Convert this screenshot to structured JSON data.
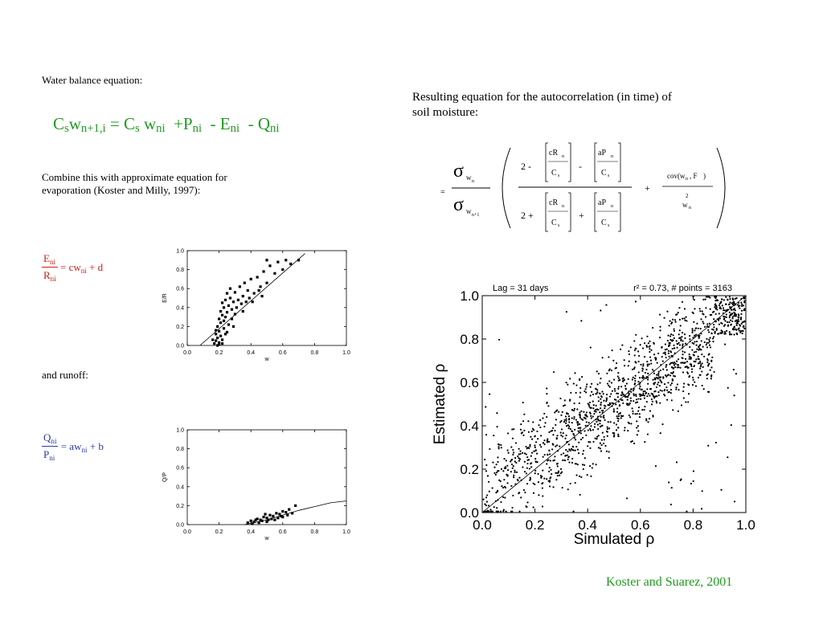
{
  "left": {
    "water_balance_label": "Water balance equation:",
    "wb_eq": {
      "c1": "C",
      "s1": "s",
      "w1": "w",
      "sub1": "n+1,i",
      "eq": "=",
      "c2": "C",
      "s2": "s",
      "w2": "w",
      "sub2": "ni",
      "plus": "+",
      "p": "P",
      "psub": "ni",
      "minus1": "-",
      "e": "E",
      "esub": "ni",
      "minus2": "-",
      "q": "Q",
      "qsub": "ni"
    },
    "combine_text_line1": "Combine this with approximate equation for",
    "combine_text_line2": "evaporation (Koster and Milly, 1997):",
    "evap_eq": {
      "num": "E",
      "num_sub": "ni",
      "den": "R",
      "den_sub": "ni",
      "rhs": "= cw",
      "rhs_sub": "ni",
      "rhs_tail": "+ d"
    },
    "runoff_label": "and runoff:",
    "runoff_eq": {
      "num": "Q",
      "num_sub": "ni",
      "den": "P",
      "den_sub": "ni",
      "rhs": "= aw",
      "rhs_sub": "ni",
      "rhs_tail": "+ b"
    }
  },
  "right": {
    "result_line1": "Resulting equation for the autocorrelation (in time) of",
    "result_line2": "soil moisture:",
    "autocorr_eq": {
      "sigma": "σ",
      "sub_top": "w",
      "sub_top_n": "n",
      "sub_bot": "w",
      "sub_bot_n": "n+1",
      "equals": "=",
      "two_minus": "2 -",
      "two_plus": "2 +",
      "cR": "cR",
      "n": "n",
      "Cs": "C",
      "s": "s",
      "aP": "aP",
      "minus": "-",
      "plus": "+",
      "cov": "cov(w",
      "cov_n": "n",
      "cov_mid": ", F",
      "cov_tail": ")",
      "two_sup": "2",
      "w": "w"
    },
    "credit": "Koster and Suarez, 2001"
  },
  "chart_data": [
    {
      "type": "scatter",
      "title": "",
      "xlabel": "w",
      "ylabel": "E/R",
      "xlim": [
        0,
        1.0
      ],
      "ylim": [
        0,
        1.0
      ],
      "xticks": [
        "0.0",
        "0.2",
        "0.4",
        "0.6",
        "0.8",
        "1.0"
      ],
      "yticks": [
        "0.0",
        "0.2",
        "0.4",
        "0.6",
        "0.8",
        "1.0"
      ],
      "fit_line": [
        [
          0.08,
          0.0
        ],
        [
          0.74,
          0.97
        ]
      ],
      "points": [
        [
          0.17,
          0.02
        ],
        [
          0.18,
          0.05
        ],
        [
          0.19,
          0.08
        ],
        [
          0.2,
          0.03
        ],
        [
          0.21,
          0.1
        ],
        [
          0.18,
          0.12
        ],
        [
          0.2,
          0.15
        ],
        [
          0.22,
          0.06
        ],
        [
          0.19,
          0.2
        ],
        [
          0.21,
          0.24
        ],
        [
          0.23,
          0.18
        ],
        [
          0.2,
          0.28
        ],
        [
          0.22,
          0.32
        ],
        [
          0.24,
          0.3
        ],
        [
          0.21,
          0.36
        ],
        [
          0.23,
          0.4
        ],
        [
          0.25,
          0.35
        ],
        [
          0.22,
          0.45
        ],
        [
          0.24,
          0.48
        ],
        [
          0.26,
          0.42
        ],
        [
          0.27,
          0.5
        ],
        [
          0.25,
          0.55
        ],
        [
          0.28,
          0.38
        ],
        [
          0.29,
          0.46
        ],
        [
          0.3,
          0.56
        ],
        [
          0.27,
          0.6
        ],
        [
          0.32,
          0.48
        ],
        [
          0.33,
          0.62
        ],
        [
          0.35,
          0.52
        ],
        [
          0.36,
          0.66
        ],
        [
          0.38,
          0.58
        ],
        [
          0.4,
          0.7
        ],
        [
          0.42,
          0.55
        ],
        [
          0.44,
          0.72
        ],
        [
          0.46,
          0.62
        ],
        [
          0.48,
          0.78
        ],
        [
          0.5,
          0.66
        ],
        [
          0.52,
          0.84
        ],
        [
          0.55,
          0.76
        ],
        [
          0.57,
          0.88
        ],
        [
          0.6,
          0.8
        ],
        [
          0.62,
          0.9
        ],
        [
          0.65,
          0.86
        ],
        [
          0.7,
          0.9
        ],
        [
          0.5,
          0.9
        ],
        [
          0.19,
          0.0
        ],
        [
          0.2,
          0.01
        ],
        [
          0.22,
          0.02
        ],
        [
          0.24,
          0.12
        ],
        [
          0.26,
          0.22
        ],
        [
          0.28,
          0.28
        ],
        [
          0.3,
          0.33
        ],
        [
          0.31,
          0.4
        ],
        [
          0.34,
          0.44
        ],
        [
          0.37,
          0.46
        ],
        [
          0.39,
          0.5
        ],
        [
          0.41,
          0.46
        ],
        [
          0.45,
          0.58
        ],
        [
          0.47,
          0.52
        ],
        [
          0.35,
          0.36
        ],
        [
          0.16,
          0.06
        ],
        [
          0.18,
          0.16
        ],
        [
          0.23,
          0.26
        ],
        [
          0.25,
          0.14
        ],
        [
          0.29,
          0.2
        ]
      ]
    },
    {
      "type": "scatter",
      "title": "",
      "xlabel": "w",
      "ylabel": "Q/P",
      "xlim": [
        0,
        1.0
      ],
      "ylim": [
        0,
        1.0
      ],
      "xticks": [
        "0.0",
        "0.2",
        "0.4",
        "0.6",
        "0.8",
        "1.0"
      ],
      "yticks": [
        "0.0",
        "0.2",
        "0.4",
        "0.6",
        "0.8",
        "1.0"
      ],
      "fit_line": [
        [
          0.36,
          0.0
        ],
        [
          0.5,
          0.05
        ],
        [
          0.6,
          0.1
        ],
        [
          0.7,
          0.15
        ],
        [
          0.8,
          0.19
        ],
        [
          0.9,
          0.23
        ],
        [
          1.0,
          0.25
        ]
      ],
      "points": [
        [
          0.38,
          0.02
        ],
        [
          0.4,
          0.04
        ],
        [
          0.42,
          0.03
        ],
        [
          0.44,
          0.06
        ],
        [
          0.46,
          0.05
        ],
        [
          0.48,
          0.08
        ],
        [
          0.5,
          0.07
        ],
        [
          0.52,
          0.1
        ],
        [
          0.54,
          0.09
        ],
        [
          0.56,
          0.12
        ],
        [
          0.58,
          0.11
        ],
        [
          0.6,
          0.14
        ],
        [
          0.62,
          0.13
        ],
        [
          0.45,
          0.02
        ],
        [
          0.5,
          0.03
        ],
        [
          0.55,
          0.05
        ],
        [
          0.6,
          0.08
        ],
        [
          0.64,
          0.16
        ],
        [
          0.66,
          0.12
        ],
        [
          0.68,
          0.2
        ],
        [
          0.47,
          0.04
        ],
        [
          0.53,
          0.06
        ],
        [
          0.57,
          0.07
        ],
        [
          0.41,
          0.01
        ],
        [
          0.43,
          0.05
        ],
        [
          0.49,
          0.11
        ],
        [
          0.51,
          0.05
        ],
        [
          0.59,
          0.09
        ],
        [
          0.63,
          0.1
        ]
      ]
    },
    {
      "type": "scatter",
      "title_left": "Lag = 31 days",
      "title_right": "r² = 0.73,  # points = 3163",
      "xlabel": "Simulated ρ",
      "ylabel": "Estimated ρ",
      "xlim": [
        0,
        1.0
      ],
      "ylim": [
        0,
        1.0
      ],
      "xticks": [
        "0.0",
        "0.2",
        "0.4",
        "0.6",
        "0.8",
        "1.0"
      ],
      "yticks": [
        "0.0",
        "0.2",
        "0.4",
        "0.6",
        "0.8",
        "1.0"
      ],
      "fit_line": [
        [
          0,
          0
        ],
        [
          1,
          1
        ]
      ],
      "n_points": 3163,
      "r2": 0.73
    }
  ]
}
